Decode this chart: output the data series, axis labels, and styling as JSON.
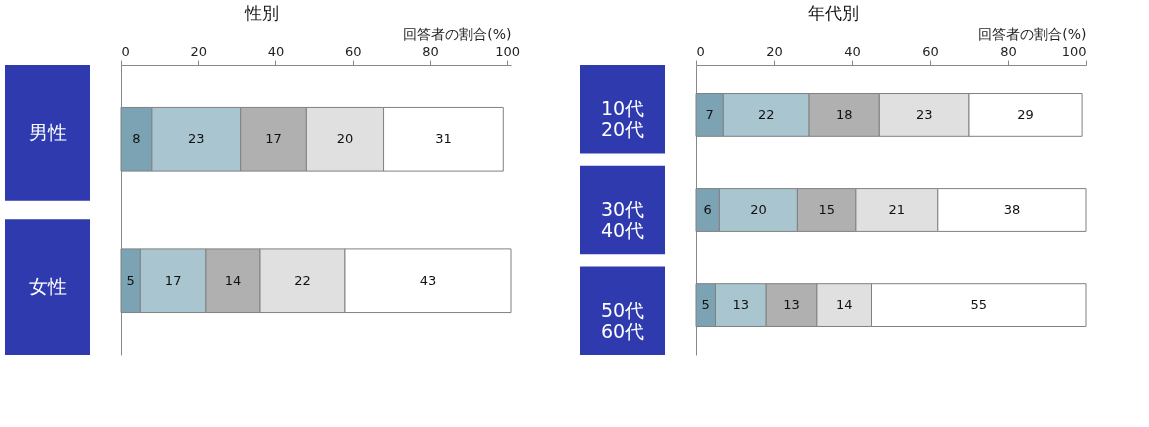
{
  "chart_data": [
    {
      "type": "bar",
      "orientation": "horizontal",
      "stacked": true,
      "title": "性別",
      "xlabel": "回答者の割合(%)",
      "categories": [
        "男性",
        "女性"
      ],
      "series": [
        {
          "color": "#7ba3b4",
          "values": [
            8,
            5
          ]
        },
        {
          "color": "#a9c5d0",
          "values": [
            23,
            17
          ]
        },
        {
          "color": "#b0b0b0",
          "values": [
            17,
            14
          ]
        },
        {
          "color": "#e0e0e0",
          "values": [
            20,
            22
          ]
        },
        {
          "color": "#ffffff",
          "values": [
            31,
            43
          ]
        }
      ],
      "xlim": [
        0,
        101
      ],
      "xticks": [
        0,
        20,
        40,
        60,
        80,
        100
      ],
      "data_labels": true
    },
    {
      "type": "bar",
      "orientation": "horizontal",
      "stacked": true,
      "title": "年代別",
      "xlabel": "回答者の割合(%)",
      "categories": [
        "10代\n20代",
        "30代\n40代",
        "50代\n60代"
      ],
      "series": [
        {
          "color": "#7ba3b4",
          "values": [
            7,
            6,
            5
          ]
        },
        {
          "color": "#a9c5d0",
          "values": [
            22,
            20,
            13
          ]
        },
        {
          "color": "#b0b0b0",
          "values": [
            18,
            15,
            13
          ]
        },
        {
          "color": "#e0e0e0",
          "values": [
            23,
            21,
            14
          ]
        },
        {
          "color": "#ffffff",
          "values": [
            29,
            38,
            55
          ]
        }
      ],
      "xlim": [
        0,
        100
      ],
      "xticks": [
        0,
        20,
        40,
        60,
        80,
        100
      ],
      "data_labels": true
    }
  ]
}
